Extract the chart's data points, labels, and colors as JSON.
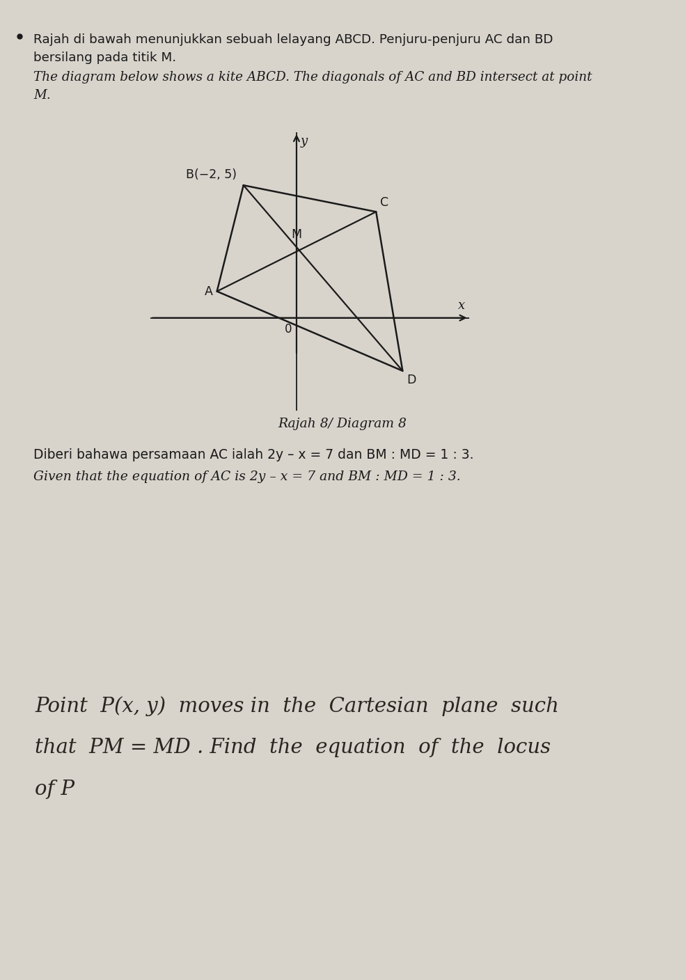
{
  "page_bg": "#d8d4cc",
  "text_color": "#1a1a1a",
  "bullet_ms_1": "Rajah di bawah menunjukkan sebuah lelayang ABCD. Penjuru-penjuru AC dan BD",
  "bullet_ms_2": "bersilang pada titik M.",
  "bullet_en_1": "The diagram below shows a kite ABCD. The diagonals of AC and BD intersect at point",
  "bullet_en_2": "M.",
  "diagram_caption": "Rajah 8/ Diagram 8",
  "given_ms": "Diberi bahawa persamaan AC ialah 2y – x = 7 dan BM : MD = 1 : 3.",
  "given_en": "Given that the equation of AC is 2y – x = 7 and BM : MD = 1 : 3.",
  "hw_line1": "Point  P(x, y)  moves in  the  Cartesian  plane  such",
  "hw_line2": "that  PM = MD . Find  the  equation  of  the  locus",
  "hw_line3": "of P",
  "kite_B": [
    -2,
    5
  ],
  "kite_C": [
    3,
    4
  ],
  "kite_D": [
    4,
    -2
  ],
  "kite_A": [
    -3,
    1
  ],
  "kite_M_label": [
    0.3,
    2.8
  ],
  "xmin": -5.5,
  "xmax": 6.5,
  "ymin": -3.5,
  "ymax": 7.0
}
